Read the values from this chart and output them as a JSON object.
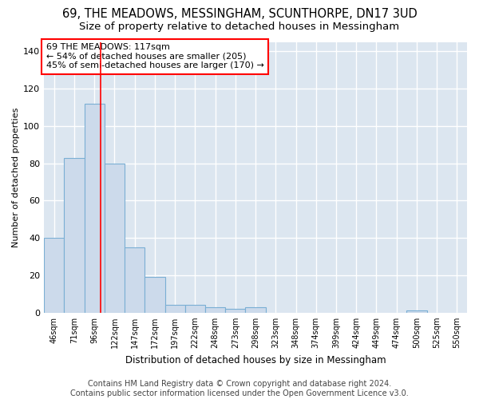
{
  "title": "69, THE MEADOWS, MESSINGHAM, SCUNTHORPE, DN17 3UD",
  "subtitle": "Size of property relative to detached houses in Messingham",
  "xlabel": "Distribution of detached houses by size in Messingham",
  "ylabel": "Number of detached properties",
  "bin_labels": [
    "46sqm",
    "71sqm",
    "96sqm",
    "122sqm",
    "147sqm",
    "172sqm",
    "197sqm",
    "222sqm",
    "248sqm",
    "273sqm",
    "298sqm",
    "323sqm",
    "348sqm",
    "374sqm",
    "399sqm",
    "424sqm",
    "449sqm",
    "474sqm",
    "500sqm",
    "525sqm",
    "550sqm"
  ],
  "bar_heights": [
    40,
    83,
    112,
    80,
    35,
    19,
    4,
    4,
    3,
    2,
    3,
    0,
    0,
    0,
    0,
    0,
    0,
    0,
    1,
    0,
    0
  ],
  "bar_color": "#ccdaeb",
  "bar_edge_color": "#7aafd4",
  "background_color": "#dce6f0",
  "grid_color": "#ffffff",
  "fig_background": "#ffffff",
  "annotation_box_text": "69 THE MEADOWS: 117sqm\n← 54% of detached houses are smaller (205)\n45% of semi-detached houses are larger (170) →",
  "footer_text": "Contains HM Land Registry data © Crown copyright and database right 2024.\nContains public sector information licensed under the Open Government Licence v3.0.",
  "ylim": [
    0,
    145
  ],
  "yticks": [
    0,
    20,
    40,
    60,
    80,
    100,
    120,
    140
  ],
  "title_fontsize": 10.5,
  "subtitle_fontsize": 9.5,
  "annotation_fontsize": 8,
  "footer_fontsize": 7,
  "ylabel_fontsize": 8,
  "xlabel_fontsize": 8.5
}
